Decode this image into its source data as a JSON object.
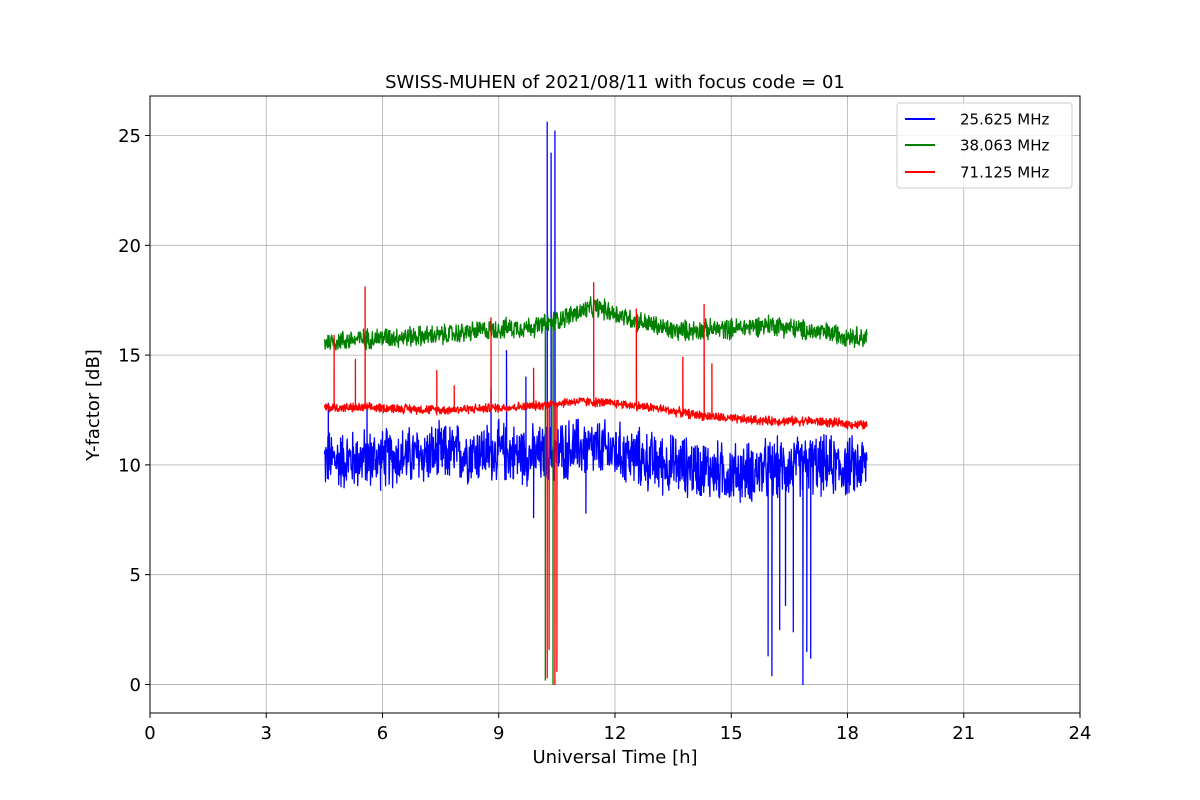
{
  "chart_data": {
    "type": "line",
    "title": "SWISS-MUHEN of 2021/08/11 with focus code = 01",
    "xlabel": "Universal Time [h]",
    "ylabel": "Y-factor [dB]",
    "xlim": [
      0,
      24
    ],
    "ylim": [
      -1.3,
      26.8
    ],
    "xticks": [
      0,
      3,
      6,
      9,
      12,
      15,
      18,
      21,
      24
    ],
    "yticks": [
      0,
      5,
      10,
      15,
      20,
      25
    ],
    "grid": true,
    "legend_position": "top-right",
    "series": [
      {
        "name": "25.625 MHz",
        "color": "#0000ff",
        "baseline": [
          [
            4.5,
            10.2
          ],
          [
            6,
            10.3
          ],
          [
            7.5,
            10.5
          ],
          [
            9,
            10.6
          ],
          [
            10,
            10.4
          ],
          [
            11,
            10.8
          ],
          [
            12,
            10.6
          ],
          [
            13,
            10.1
          ],
          [
            14,
            9.9
          ],
          [
            15,
            9.6
          ],
          [
            16,
            9.8
          ],
          [
            17,
            10.0
          ],
          [
            18,
            9.9
          ],
          [
            18.5,
            10.0
          ]
        ],
        "noise_amplitude": 1.6,
        "spikes": [
          [
            4.6,
            12.8
          ],
          [
            5.6,
            12.6
          ],
          [
            8.8,
            13.5
          ],
          [
            9.2,
            15.2
          ],
          [
            9.7,
            14.0
          ],
          [
            9.9,
            7.6
          ],
          [
            10.25,
            25.6
          ],
          [
            10.35,
            24.2
          ],
          [
            10.45,
            25.2
          ],
          [
            11.25,
            7.8
          ],
          [
            15.95,
            1.3
          ],
          [
            16.05,
            0.4
          ],
          [
            16.25,
            2.5
          ],
          [
            16.4,
            3.6
          ],
          [
            16.6,
            2.4
          ],
          [
            16.85,
            0.0
          ],
          [
            16.95,
            1.5
          ],
          [
            17.05,
            1.2
          ]
        ]
      },
      {
        "name": "38.063 MHz",
        "color": "#008000",
        "baseline": [
          [
            4.5,
            15.6
          ],
          [
            6,
            15.8
          ],
          [
            7.5,
            15.9
          ],
          [
            9,
            16.2
          ],
          [
            10,
            16.3
          ],
          [
            10.5,
            16.6
          ],
          [
            11.5,
            17.2
          ],
          [
            12.5,
            16.6
          ],
          [
            13.5,
            16.1
          ],
          [
            15,
            16.2
          ],
          [
            16,
            16.4
          ],
          [
            17,
            16.1
          ],
          [
            18.5,
            15.8
          ]
        ],
        "noise_amplitude": 0.55,
        "spikes": [
          [
            10.2,
            0.2
          ],
          [
            10.4,
            0.0
          ]
        ]
      },
      {
        "name": "71.125 MHz",
        "color": "#ff0000",
        "baseline": [
          [
            4.5,
            12.6
          ],
          [
            6,
            12.6
          ],
          [
            7.5,
            12.5
          ],
          [
            9,
            12.6
          ],
          [
            10,
            12.7
          ],
          [
            11,
            12.9
          ],
          [
            12,
            12.8
          ],
          [
            13,
            12.6
          ],
          [
            14,
            12.3
          ],
          [
            15,
            12.1
          ],
          [
            16,
            12.0
          ],
          [
            17,
            12.0
          ],
          [
            18.5,
            11.8
          ]
        ],
        "noise_amplitude": 0.25,
        "spikes": [
          [
            4.75,
            15.9
          ],
          [
            5.3,
            14.8
          ],
          [
            5.55,
            18.1
          ],
          [
            7.4,
            14.3
          ],
          [
            7.85,
            13.6
          ],
          [
            8.8,
            16.7
          ],
          [
            9.9,
            14.4
          ],
          [
            10.25,
            0.3
          ],
          [
            10.3,
            1.6
          ],
          [
            10.45,
            0.0
          ],
          [
            10.5,
            0.6
          ],
          [
            11.45,
            18.3
          ],
          [
            12.55,
            17.1
          ],
          [
            13.75,
            14.9
          ],
          [
            14.3,
            17.3
          ],
          [
            14.5,
            14.6
          ]
        ]
      }
    ]
  }
}
